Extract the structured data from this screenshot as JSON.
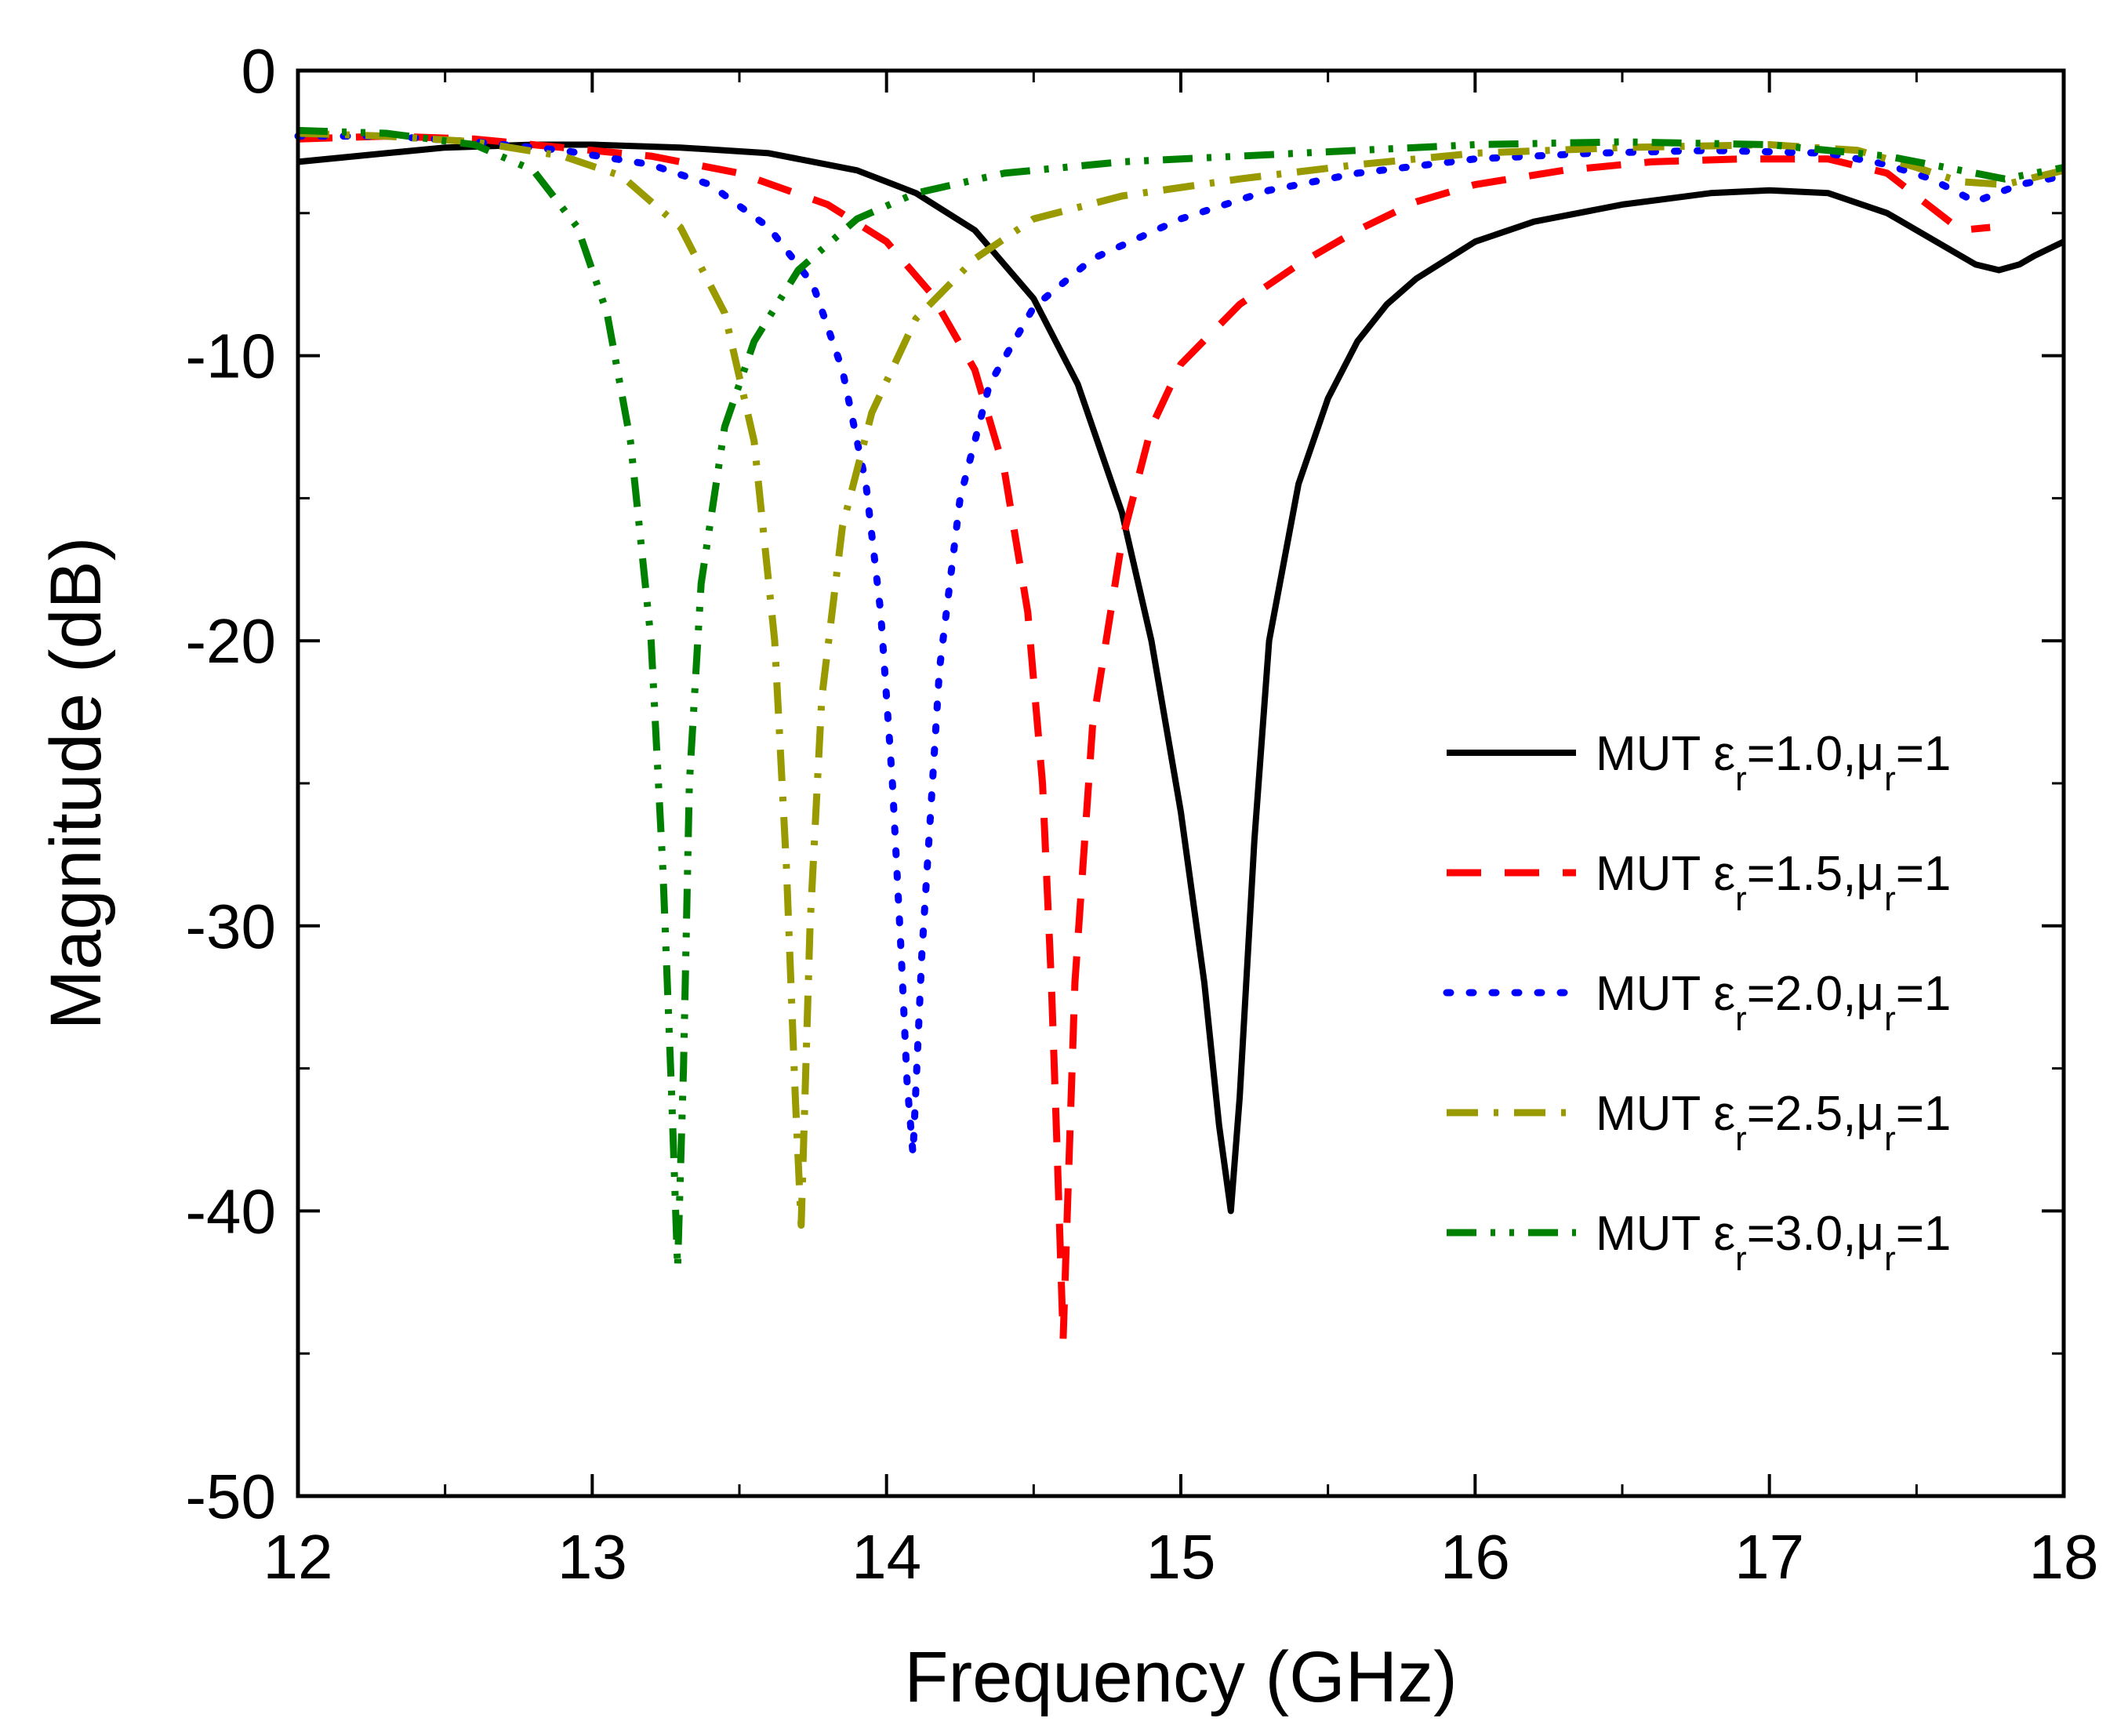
{
  "chart_data": {
    "type": "line",
    "title": "",
    "xlabel": "Frequency (GHz)",
    "ylabel": "Magnitude (dB)",
    "xlim": [
      12,
      18
    ],
    "ylim": [
      -50,
      0
    ],
    "xticks": [
      12,
      13,
      14,
      15,
      16,
      17,
      18
    ],
    "xtick_labels": [
      "12",
      "13",
      "14",
      "15",
      "16",
      "17",
      "18"
    ],
    "yticks": [
      0,
      -10,
      -20,
      -30,
      -40,
      -50
    ],
    "ytick_labels": [
      "0",
      "-10",
      "-20",
      "-30",
      "-40",
      "-50"
    ],
    "grid": false,
    "legend_position": "right",
    "series": [
      {
        "name": "MUT εr=1.0,μr=1",
        "legend": {
          "prefix": "MUT ε",
          "sub1": "r",
          "mid": "=1.0,μ",
          "sub2": "r",
          "suffix": "=1"
        },
        "color": "#000000",
        "style": "solid",
        "x": [
          12.0,
          12.3,
          12.5,
          12.8,
          13.0,
          13.3,
          13.6,
          13.9,
          14.1,
          14.3,
          14.5,
          14.65,
          14.8,
          14.9,
          15.0,
          15.08,
          15.13,
          15.17,
          15.2,
          15.25,
          15.3,
          15.4,
          15.5,
          15.6,
          15.7,
          15.8,
          16.0,
          16.2,
          16.5,
          16.8,
          17.0,
          17.2,
          17.4,
          17.6,
          17.7,
          17.78,
          17.85,
          17.9,
          18.0
        ],
        "y": [
          -3.2,
          -2.9,
          -2.7,
          -2.6,
          -2.6,
          -2.7,
          -2.9,
          -3.5,
          -4.3,
          -5.6,
          -8.0,
          -11.0,
          -15.5,
          -20.0,
          -26.0,
          -32.0,
          -37.0,
          -40.0,
          -36.0,
          -27.0,
          -20.0,
          -14.5,
          -11.5,
          -9.5,
          -8.2,
          -7.3,
          -6.0,
          -5.3,
          -4.7,
          -4.3,
          -4.2,
          -4.3,
          -5.0,
          -6.2,
          -6.8,
          -7.0,
          -6.8,
          -6.5,
          -6.0
        ]
      },
      {
        "name": "MUT εr=1.5,μr=1",
        "legend": {
          "prefix": "MUT ε",
          "sub1": "r",
          "mid": "=1.5,μ",
          "sub2": "r",
          "suffix": "=1"
        },
        "color": "#ff0000",
        "style": "dash",
        "x": [
          12.0,
          12.3,
          12.6,
          12.9,
          13.2,
          13.5,
          13.8,
          14.0,
          14.15,
          14.3,
          14.4,
          14.48,
          14.53,
          14.56,
          14.58,
          14.6,
          14.64,
          14.7,
          14.8,
          14.9,
          15.0,
          15.2,
          15.4,
          15.6,
          15.8,
          16.0,
          16.3,
          16.6,
          16.9,
          17.2,
          17.4,
          17.55,
          17.65,
          17.75
        ],
        "y": [
          -2.4,
          -2.3,
          -2.4,
          -2.7,
          -3.0,
          -3.6,
          -4.7,
          -6.0,
          -7.8,
          -10.5,
          -14.0,
          -19.0,
          -25.0,
          -32.0,
          -38.0,
          -44.5,
          -32.0,
          -23.0,
          -16.5,
          -12.5,
          -10.3,
          -8.2,
          -6.8,
          -5.6,
          -4.6,
          -4.0,
          -3.5,
          -3.2,
          -3.1,
          -3.1,
          -3.6,
          -4.8,
          -5.6,
          -5.5
        ]
      },
      {
        "name": "MUT εr=2.0,μr=1",
        "legend": {
          "prefix": "MUT ε",
          "sub1": "r",
          "mid": "=2.0,μ",
          "sub2": "r",
          "suffix": "=1"
        },
        "color": "#0000ff",
        "style": "dot",
        "x": [
          12.0,
          12.3,
          12.6,
          12.9,
          13.2,
          13.4,
          13.6,
          13.75,
          13.85,
          13.93,
          13.98,
          14.02,
          14.05,
          14.07,
          14.09,
          14.12,
          14.18,
          14.25,
          14.35,
          14.5,
          14.7,
          15.0,
          15.3,
          15.6,
          16.0,
          16.4,
          16.8,
          17.2,
          17.4,
          17.55,
          17.7,
          17.85,
          18.0
        ],
        "y": [
          -2.3,
          -2.3,
          -2.5,
          -2.8,
          -3.3,
          -4.0,
          -5.5,
          -7.5,
          -10.5,
          -14.5,
          -19.0,
          -25.0,
          -31.0,
          -35.5,
          -38.0,
          -31.0,
          -21.0,
          -15.0,
          -11.0,
          -8.3,
          -6.6,
          -5.2,
          -4.2,
          -3.6,
          -3.1,
          -2.9,
          -2.8,
          -2.9,
          -3.3,
          -3.8,
          -4.6,
          -4.0,
          -3.7
        ]
      },
      {
        "name": "MUT εr=2.5,μr=1",
        "legend": {
          "prefix": "MUT ε",
          "sub1": "r",
          "mid": "=2.5,μ",
          "sub2": "r",
          "suffix": "=1"
        },
        "color": "#999900",
        "style": "dashdot",
        "x": [
          12.0,
          12.3,
          12.6,
          12.9,
          13.1,
          13.3,
          13.45,
          13.55,
          13.62,
          13.66,
          13.69,
          13.71,
          13.74,
          13.78,
          13.85,
          13.95,
          14.1,
          14.3,
          14.5,
          14.8,
          15.2,
          15.6,
          16.0,
          16.5,
          17.0,
          17.3,
          17.5,
          17.65,
          17.8,
          18.0
        ],
        "y": [
          -2.2,
          -2.3,
          -2.5,
          -3.0,
          -3.7,
          -5.5,
          -8.5,
          -13.0,
          -20.0,
          -28.0,
          -36.0,
          -40.5,
          -30.0,
          -22.0,
          -16.0,
          -12.0,
          -8.7,
          -6.6,
          -5.2,
          -4.4,
          -3.8,
          -3.3,
          -2.9,
          -2.7,
          -2.6,
          -2.8,
          -3.4,
          -3.9,
          -4.0,
          -3.5
        ]
      },
      {
        "name": "MUT εr=3.0,μr=1",
        "legend": {
          "prefix": "MUT ε",
          "sub1": "r",
          "mid": "=3.0,μ",
          "sub2": "r",
          "suffix": "=1"
        },
        "color": "#008000",
        "style": "dashdotdot",
        "x": [
          12.0,
          12.3,
          12.6,
          12.8,
          12.95,
          13.05,
          13.13,
          13.2,
          13.24,
          13.27,
          13.29,
          13.31,
          13.33,
          13.37,
          13.45,
          13.55,
          13.7,
          13.9,
          14.1,
          14.4,
          14.8,
          15.2,
          15.6,
          16.0,
          16.5,
          17.0,
          17.4,
          17.6,
          17.8,
          18.0
        ],
        "y": [
          -2.1,
          -2.2,
          -2.6,
          -3.5,
          -5.5,
          -8.5,
          -13.0,
          -20.0,
          -28.0,
          -36.0,
          -42.0,
          -35.0,
          -25.0,
          -18.0,
          -12.5,
          -9.5,
          -7.0,
          -5.2,
          -4.3,
          -3.6,
          -3.2,
          -3.0,
          -2.8,
          -2.6,
          -2.5,
          -2.6,
          -3.0,
          -3.4,
          -3.8,
          -3.4
        ]
      }
    ]
  }
}
